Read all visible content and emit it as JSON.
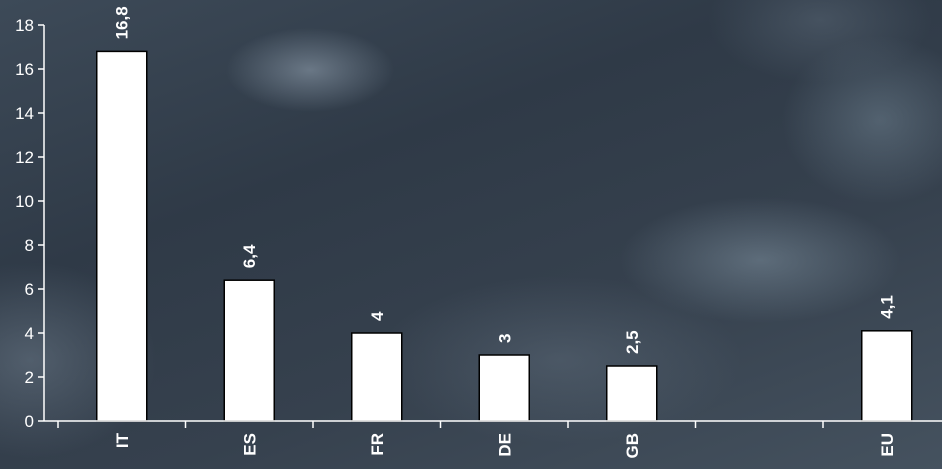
{
  "chart_data": {
    "type": "bar",
    "categories": [
      "IT",
      "ES",
      "FR",
      "DE",
      "GB",
      "",
      "EU"
    ],
    "values": [
      16.8,
      6.4,
      4,
      3,
      2.5,
      null,
      4.1
    ],
    "data_labels": [
      "16,8",
      "6,4",
      "4",
      "3",
      "2,5",
      "",
      "4,1"
    ],
    "ylim": [
      0,
      18
    ],
    "yticks": [
      0,
      2,
      4,
      6,
      8,
      10,
      12,
      14,
      16,
      18
    ],
    "title": "",
    "xlabel": "",
    "ylabel": "",
    "grid": false,
    "bar_color": "#ffffff",
    "bar_edge_color": "#000000",
    "axis_color": "#ffffff",
    "text_color": "#ffffff"
  }
}
